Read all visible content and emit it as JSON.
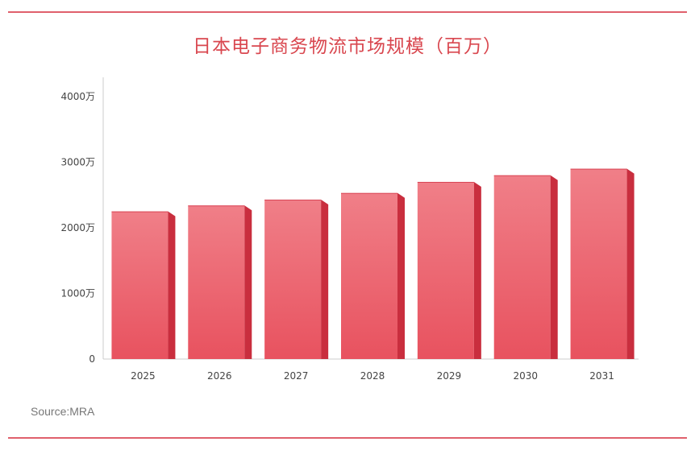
{
  "source_label": "Source:MRA",
  "colors": {
    "bar_front_top": "#f07f88",
    "bar_front_bottom": "#e8525f",
    "bar_side": "#c92e3e",
    "bar_top": "#d94756",
    "title": "#d9474f"
  },
  "chart_data": {
    "type": "bar",
    "title": "日本电子商务物流市场规模（百万）",
    "xlabel": "",
    "ylabel": "",
    "categories": [
      "2025",
      "2026",
      "2027",
      "2028",
      "2029",
      "2030",
      "2031"
    ],
    "values": [
      2250,
      2340,
      2430,
      2530,
      2700,
      2800,
      2900
    ],
    "ylim": [
      0,
      4000
    ],
    "yticks": [
      {
        "value": 0,
        "label": "0"
      },
      {
        "value": 1000,
        "label": "1000万"
      },
      {
        "value": 2000,
        "label": "2000万"
      },
      {
        "value": 3000,
        "label": "3000万"
      },
      {
        "value": 4000,
        "label": "4000万"
      }
    ],
    "grid": false,
    "legend": "none"
  }
}
